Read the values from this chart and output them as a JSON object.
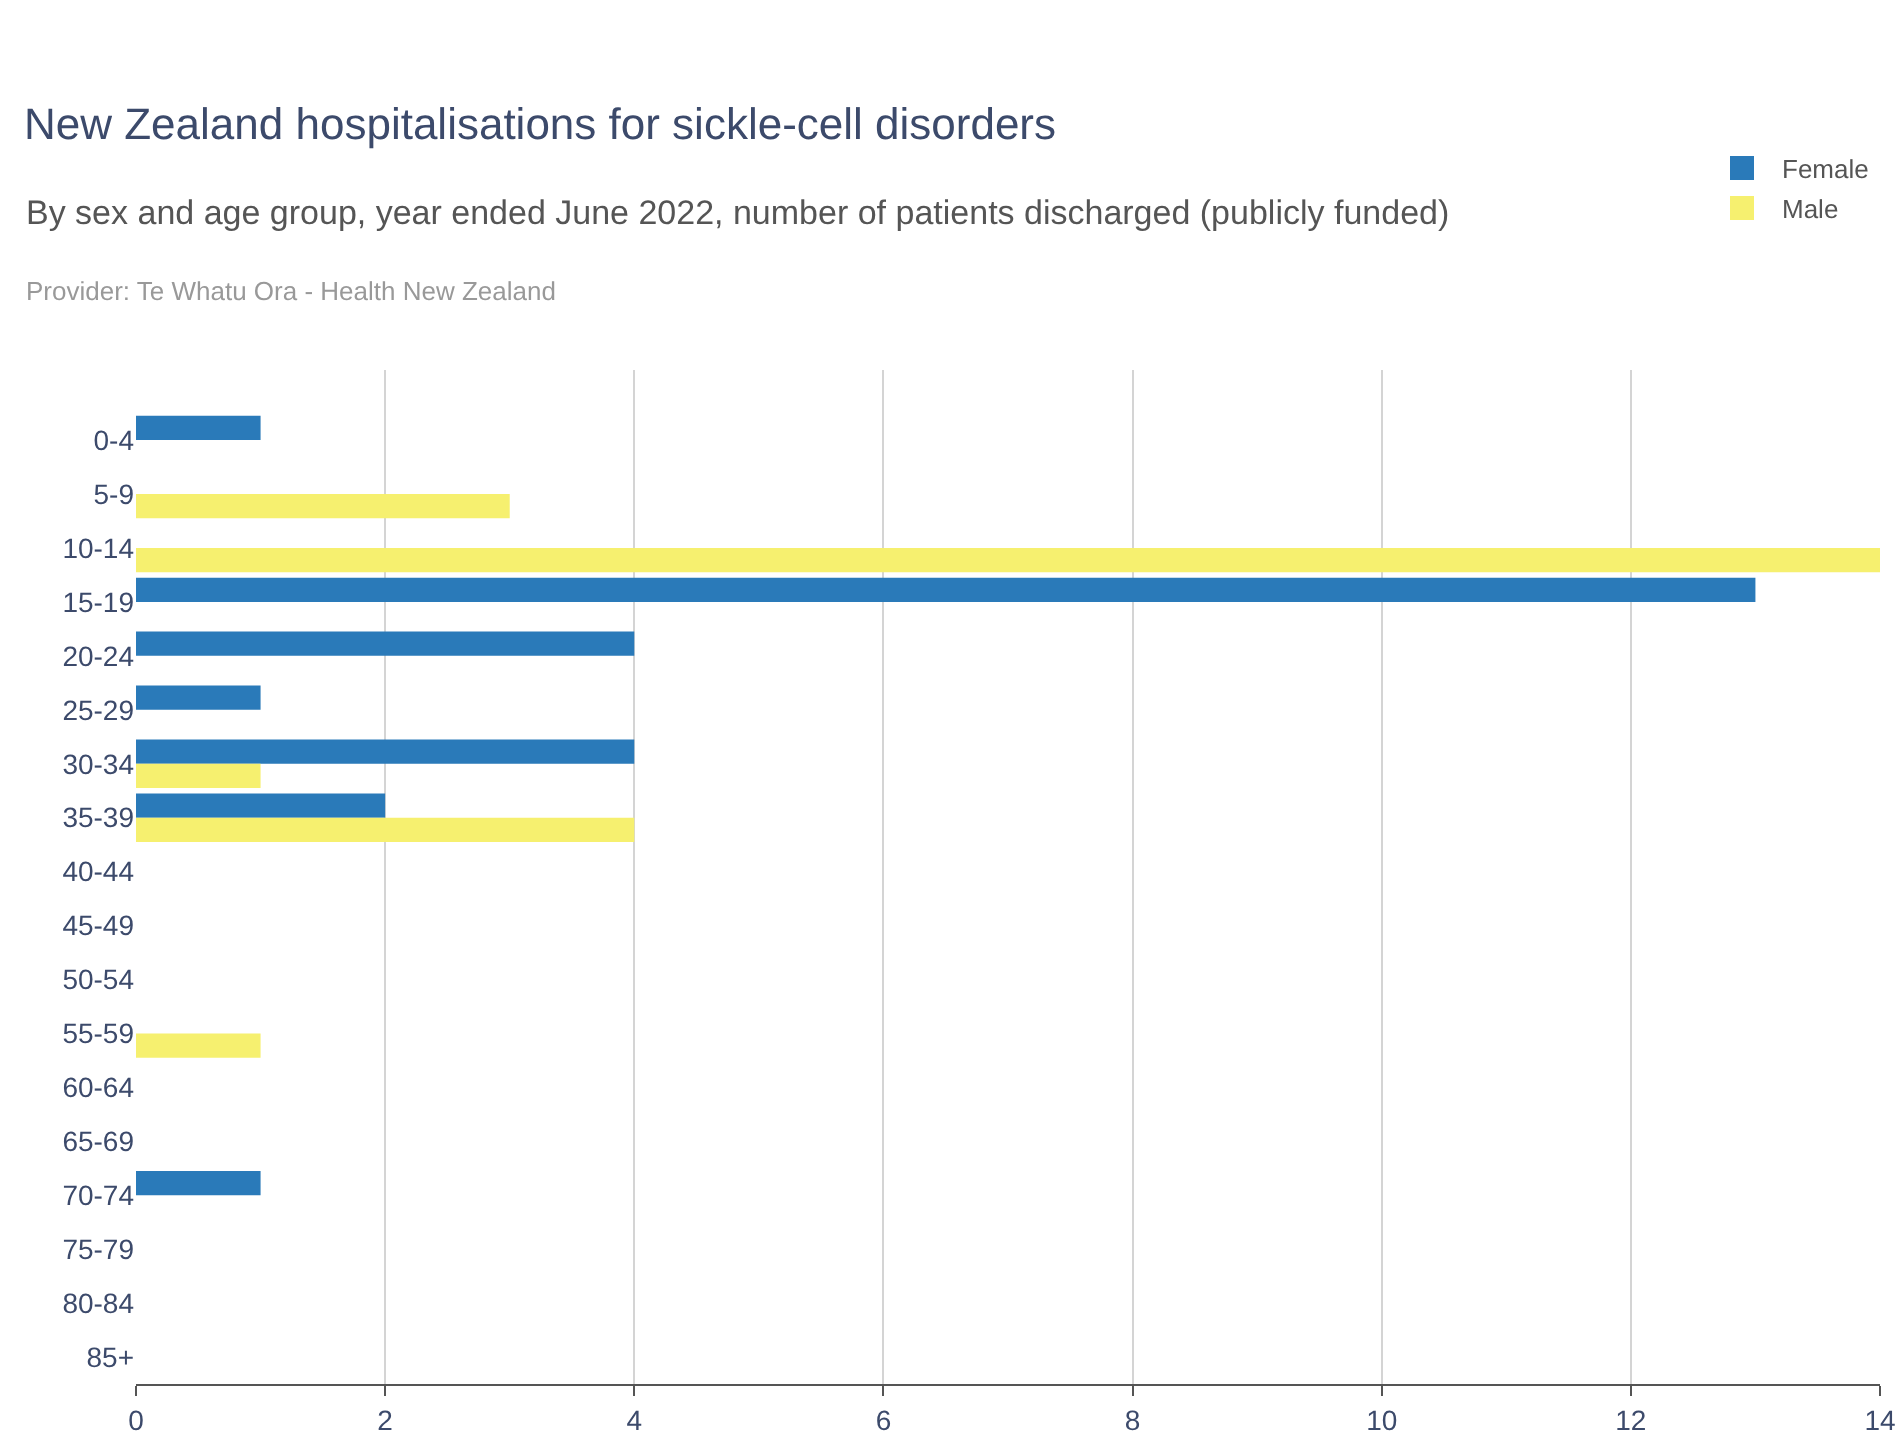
{
  "chart_data": {
    "type": "bar",
    "orientation": "horizontal",
    "title": "New Zealand hospitalisations for sickle-cell disorders",
    "subtitle": "By sex and age group, year ended June 2022, number of patients discharged (publicly funded)",
    "annotations": [
      "Provider: Te Whatu Ora - Health New Zealand"
    ],
    "categories": [
      "0-4",
      "5-9",
      "10-14",
      "15-19",
      "20-24",
      "25-29",
      "30-34",
      "35-39",
      "40-44",
      "45-49",
      "50-54",
      "55-59",
      "60-64",
      "65-69",
      "70-74",
      "75-79",
      "80-84",
      "85+"
    ],
    "series": [
      {
        "name": "Female",
        "color": "#2a7ab9",
        "values": [
          1,
          0,
          0,
          13,
          4,
          1,
          4,
          2,
          0,
          0,
          0,
          0,
          0,
          0,
          1,
          0,
          0,
          0
        ]
      },
      {
        "name": "Male",
        "color": "#f6f06f",
        "values": [
          0,
          3,
          14,
          0,
          0,
          0,
          1,
          4,
          0,
          0,
          0,
          1,
          0,
          0,
          0,
          0,
          0,
          0
        ]
      }
    ],
    "xlim": [
      0,
      14
    ],
    "xticks": [
      0,
      2,
      4,
      6,
      8,
      10,
      12,
      14
    ],
    "grid": "x",
    "legend": "top right"
  }
}
